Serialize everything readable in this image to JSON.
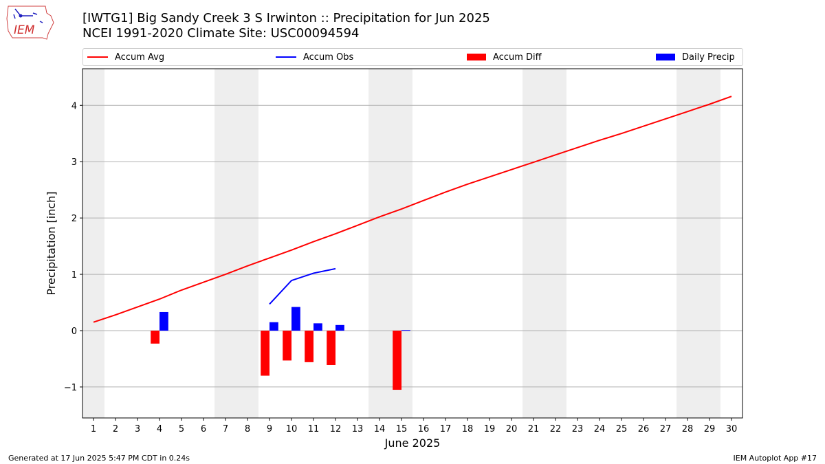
{
  "header": {
    "title_line1": "[IWTG1] Big Sandy Creek 3 S Irwinton :: Precipitation for Jun 2025",
    "title_line2": "NCEI 1991-2020 Climate Site: USC00094594",
    "logo_text": "IEM"
  },
  "legend": {
    "accum_avg": "Accum Avg",
    "accum_obs": "Accum Obs",
    "accum_diff": "Accum Diff",
    "daily_precip": "Daily Precip"
  },
  "footer": {
    "generated": "Generated at 17 Jun 2025 5:47 PM CDT in 0.24s",
    "app": "IEM Autoplot App #17"
  },
  "colors": {
    "avg": "#ff0000",
    "obs": "#0000ff",
    "diff": "#ff0000",
    "precip": "#0000ff",
    "weekend": "#eeeeee",
    "grid": "#b0b0b0"
  },
  "chart_data": {
    "type": "bar",
    "xlabel": "June 2025",
    "ylabel": "Precipitation [inch]",
    "xlim": [
      0.5,
      30.5
    ],
    "ylim": [
      -1.55,
      4.65
    ],
    "yticks": [
      -1,
      0,
      1,
      2,
      3,
      4
    ],
    "ytick_labels": [
      "−1",
      "0",
      "1",
      "2",
      "3",
      "4"
    ],
    "days": [
      1,
      2,
      3,
      4,
      5,
      6,
      7,
      8,
      9,
      10,
      11,
      12,
      13,
      14,
      15,
      16,
      17,
      18,
      19,
      20,
      21,
      22,
      23,
      24,
      25,
      26,
      27,
      28,
      29,
      30
    ],
    "weekend_days": [
      1,
      7,
      8,
      14,
      15,
      21,
      22,
      28,
      29
    ],
    "grid": true,
    "series": [
      {
        "name": "Accum Avg",
        "kind": "line",
        "x": [
          1,
          2,
          3,
          4,
          5,
          6,
          7,
          8,
          9,
          10,
          11,
          12,
          13,
          14,
          15,
          16,
          17,
          18,
          19,
          20,
          21,
          22,
          23,
          24,
          25,
          26,
          27,
          28,
          29,
          30
        ],
        "values": [
          0.15,
          0.28,
          0.42,
          0.56,
          0.72,
          0.86,
          1.0,
          1.15,
          1.29,
          1.43,
          1.58,
          1.72,
          1.87,
          2.02,
          2.16,
          2.31,
          2.46,
          2.6,
          2.73,
          2.86,
          2.99,
          3.12,
          3.25,
          3.38,
          3.5,
          3.63,
          3.76,
          3.89,
          4.02,
          4.16
        ]
      },
      {
        "name": "Accum Obs",
        "kind": "line",
        "x": [
          9,
          10,
          11,
          12
        ],
        "values": [
          0.47,
          0.89,
          1.02,
          1.1
        ]
      },
      {
        "name": "Accum Diff",
        "kind": "bar",
        "x": [
          4,
          9,
          10,
          11,
          12,
          15
        ],
        "values": [
          -0.23,
          -0.8,
          -0.53,
          -0.56,
          -0.61,
          -1.05
        ]
      },
      {
        "name": "Daily Precip",
        "kind": "bar",
        "x": [
          4,
          9,
          10,
          11,
          12,
          15
        ],
        "values": [
          0.33,
          0.15,
          0.42,
          0.13,
          0.1,
          0.01
        ]
      }
    ]
  }
}
